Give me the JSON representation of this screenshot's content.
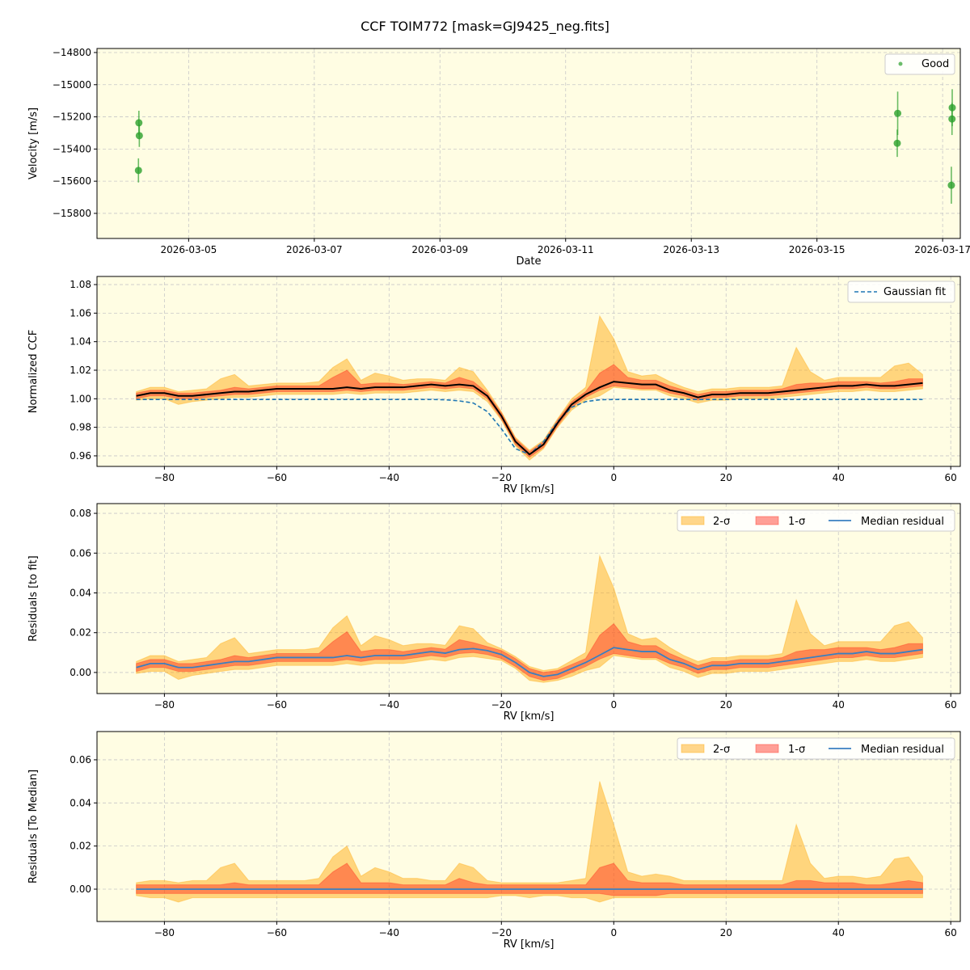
{
  "title": "CCF TOIM772 [mask=GJ9425_neg.fits]",
  "colors": {
    "background": "#fffde3",
    "good": "#2ca02c",
    "fit": "#1f77b4",
    "median": "#000000",
    "sigma2": "#ffa500",
    "sigma1": "#ff2a1a",
    "residual": "#3a7fc0"
  },
  "chart_data": [
    {
      "type": "scatter",
      "xlabel": "Date",
      "ylabel": "Velocity [m/s]",
      "xlim": [
        "2026-03-03T13:00",
        "2026-03-17T06:45"
      ],
      "ylim": [
        -15956,
        -14775
      ],
      "xticks": [
        "2026-03-05",
        "2026-03-07",
        "2026-03-09",
        "2026-03-11",
        "2026-03-13",
        "2026-03-15",
        "2026-03-17"
      ],
      "yticks": [
        -14800,
        -15000,
        -15200,
        -15400,
        -15600,
        -15800
      ],
      "ytick_labels": [
        "−14800",
        "−15000",
        "−15200",
        "−15400",
        "−15600",
        "−15800"
      ],
      "grid": true,
      "legend": {
        "placement": "top-right",
        "entries": [
          "Good"
        ]
      },
      "series": [
        {
          "name": "Good",
          "points": [
            {
              "x": "2026-03-04T05:00",
              "y": -15237,
              "err": 75
            },
            {
              "x": "2026-03-04T05:10",
              "y": -15317,
              "err": 70
            },
            {
              "x": "2026-03-04T04:50",
              "y": -15533,
              "err": 75
            },
            {
              "x": "2026-03-16T06:50",
              "y": -15178,
              "err": 135
            },
            {
              "x": "2026-03-16T06:40",
              "y": -15364,
              "err": 85
            },
            {
              "x": "2026-03-17T03:40",
              "y": -15143,
              "err": 115
            },
            {
              "x": "2026-03-17T03:35",
              "y": -15213,
              "err": 100
            },
            {
              "x": "2026-03-17T03:20",
              "y": -15625,
              "err": 115
            }
          ]
        }
      ]
    },
    {
      "type": "line",
      "xlabel": "RV [km/s]",
      "ylabel": "Normalized CCF",
      "xlim": [
        -92,
        61.7
      ],
      "ylim": [
        0.9526,
        1.0857
      ],
      "xticks": [
        -80,
        -60,
        -40,
        -20,
        0,
        20,
        40,
        60
      ],
      "yticks": [
        0.96,
        0.98,
        1.0,
        1.02,
        1.04,
        1.06,
        1.08
      ],
      "grid": true,
      "legend": {
        "placement": "top-right",
        "entries": [
          "Gaussian fit"
        ]
      },
      "x": [
        -85,
        -82.5,
        -80,
        -77.5,
        -75,
        -72.5,
        -70,
        -67.5,
        -65,
        -62.5,
        -60,
        -57.5,
        -55,
        -52.5,
        -50,
        -47.5,
        -45,
        -42.5,
        -40,
        -37.5,
        -35,
        -32.5,
        -30,
        -27.5,
        -25,
        -22.5,
        -20,
        -17.5,
        -15,
        -12.5,
        -10,
        -7.5,
        -5,
        -2.5,
        0,
        2.5,
        5,
        7.5,
        10,
        12.5,
        15,
        17.5,
        20,
        22.5,
        25,
        27.5,
        30,
        32.5,
        35,
        37.5,
        40,
        42.5,
        45,
        47.5,
        50,
        52.5,
        55
      ],
      "median_ccf": [
        1.002,
        1.004,
        1.004,
        1.002,
        1.002,
        1.003,
        1.004,
        1.005,
        1.005,
        1.006,
        1.007,
        1.007,
        1.007,
        1.007,
        1.007,
        1.008,
        1.007,
        1.008,
        1.008,
        1.008,
        1.009,
        1.01,
        1.009,
        1.01,
        1.009,
        1.002,
        0.988,
        0.97,
        0.961,
        0.968,
        0.983,
        0.996,
        1.003,
        1.008,
        1.012,
        1.011,
        1.01,
        1.01,
        1.006,
        1.004,
        1.001,
        1.003,
        1.003,
        1.004,
        1.004,
        1.004,
        1.005,
        1.006,
        1.007,
        1.008,
        1.009,
        1.009,
        1.01,
        1.009,
        1.009,
        1.01,
        1.011
      ],
      "gaussian_fit": [
        0.9995,
        0.9995,
        0.9995,
        0.9995,
        0.9995,
        0.9995,
        0.9995,
        0.9995,
        0.9995,
        0.9995,
        0.9995,
        0.9995,
        0.9995,
        0.9995,
        0.9995,
        0.9995,
        0.9995,
        0.9995,
        0.9995,
        0.9995,
        0.9995,
        0.9995,
        0.9993,
        0.9985,
        0.997,
        0.991,
        0.979,
        0.965,
        0.961,
        0.97,
        0.984,
        0.994,
        0.998,
        0.9993,
        0.9995,
        0.9995,
        0.9995,
        0.9995,
        0.9995,
        0.9995,
        0.9995,
        0.9995,
        0.9995,
        0.9995,
        0.9995,
        0.9995,
        0.9995,
        0.9995,
        0.9995,
        0.9995,
        0.9995,
        0.9995,
        0.9995,
        0.9995,
        0.9995,
        0.9995,
        0.9995
      ],
      "sigma1_upper": [
        0.002,
        0.002,
        0.002,
        0.002,
        0.002,
        0.002,
        0.002,
        0.003,
        0.002,
        0.002,
        0.002,
        0.002,
        0.002,
        0.002,
        0.008,
        0.012,
        0.003,
        0.003,
        0.003,
        0.002,
        0.002,
        0.002,
        0.002,
        0.005,
        0.003,
        0.002,
        0.002,
        0.002,
        0.002,
        0.002,
        0.002,
        0.002,
        0.002,
        0.01,
        0.012,
        0.004,
        0.003,
        0.003,
        0.003,
        0.002,
        0.002,
        0.002,
        0.002,
        0.002,
        0.002,
        0.002,
        0.002,
        0.004,
        0.004,
        0.003,
        0.003,
        0.003,
        0.002,
        0.002,
        0.003,
        0.004,
        0.003
      ],
      "sigma1_lower": [
        0.002,
        0.002,
        0.002,
        0.002,
        0.002,
        0.002,
        0.002,
        0.002,
        0.002,
        0.002,
        0.002,
        0.002,
        0.002,
        0.002,
        0.002,
        0.002,
        0.002,
        0.002,
        0.002,
        0.002,
        0.002,
        0.002,
        0.002,
        0.002,
        0.002,
        0.002,
        0.002,
        0.002,
        0.002,
        0.002,
        0.002,
        0.002,
        0.002,
        0.002,
        0.003,
        0.003,
        0.003,
        0.003,
        0.002,
        0.002,
        0.002,
        0.002,
        0.002,
        0.002,
        0.002,
        0.002,
        0.002,
        0.002,
        0.002,
        0.002,
        0.002,
        0.002,
        0.002,
        0.002,
        0.002,
        0.002,
        0.002
      ],
      "sigma2_upper": [
        0.003,
        0.004,
        0.004,
        0.003,
        0.004,
        0.004,
        0.01,
        0.012,
        0.004,
        0.004,
        0.004,
        0.004,
        0.004,
        0.005,
        0.015,
        0.02,
        0.006,
        0.01,
        0.008,
        0.005,
        0.005,
        0.004,
        0.004,
        0.012,
        0.01,
        0.004,
        0.003,
        0.003,
        0.003,
        0.003,
        0.003,
        0.004,
        0.005,
        0.05,
        0.03,
        0.008,
        0.006,
        0.007,
        0.006,
        0.004,
        0.004,
        0.004,
        0.004,
        0.004,
        0.004,
        0.004,
        0.004,
        0.03,
        0.012,
        0.005,
        0.006,
        0.006,
        0.005,
        0.006,
        0.014,
        0.015,
        0.006
      ],
      "sigma2_lower": [
        0.003,
        0.004,
        0.004,
        0.006,
        0.004,
        0.004,
        0.004,
        0.004,
        0.004,
        0.004,
        0.004,
        0.004,
        0.004,
        0.004,
        0.004,
        0.004,
        0.004,
        0.004,
        0.004,
        0.004,
        0.004,
        0.004,
        0.004,
        0.004,
        0.004,
        0.004,
        0.003,
        0.003,
        0.004,
        0.003,
        0.003,
        0.004,
        0.004,
        0.006,
        0.004,
        0.004,
        0.004,
        0.004,
        0.004,
        0.004,
        0.004,
        0.004,
        0.004,
        0.004,
        0.004,
        0.004,
        0.004,
        0.004,
        0.004,
        0.004,
        0.004,
        0.004,
        0.004,
        0.004,
        0.004,
        0.004,
        0.004
      ]
    },
    {
      "type": "area",
      "xlabel": "RV [km/s]",
      "ylabel": "Residuals [to fit]",
      "xlim": [
        -92,
        61.7
      ],
      "ylim": [
        -0.0106,
        0.0849
      ],
      "xticks": [
        -80,
        -60,
        -40,
        -20,
        0,
        20,
        40,
        60
      ],
      "yticks": [
        0.0,
        0.02,
        0.04,
        0.06,
        0.08
      ],
      "grid": true,
      "legend": {
        "placement": "top-right",
        "entries": [
          "2-σ",
          "1-σ",
          "Median residual"
        ]
      }
    },
    {
      "type": "area",
      "xlabel": "RV [km/s]",
      "ylabel": "Residuals [To Median]",
      "xlim": [
        -92,
        61.7
      ],
      "ylim": [
        -0.015,
        0.0731
      ],
      "xticks": [
        -80,
        -60,
        -40,
        -20,
        0,
        20,
        40,
        60
      ],
      "yticks": [
        0.0,
        0.02,
        0.04,
        0.06
      ],
      "grid": true,
      "legend": {
        "placement": "top-right",
        "entries": [
          "2-σ",
          "1-σ",
          "Median residual"
        ]
      }
    }
  ]
}
